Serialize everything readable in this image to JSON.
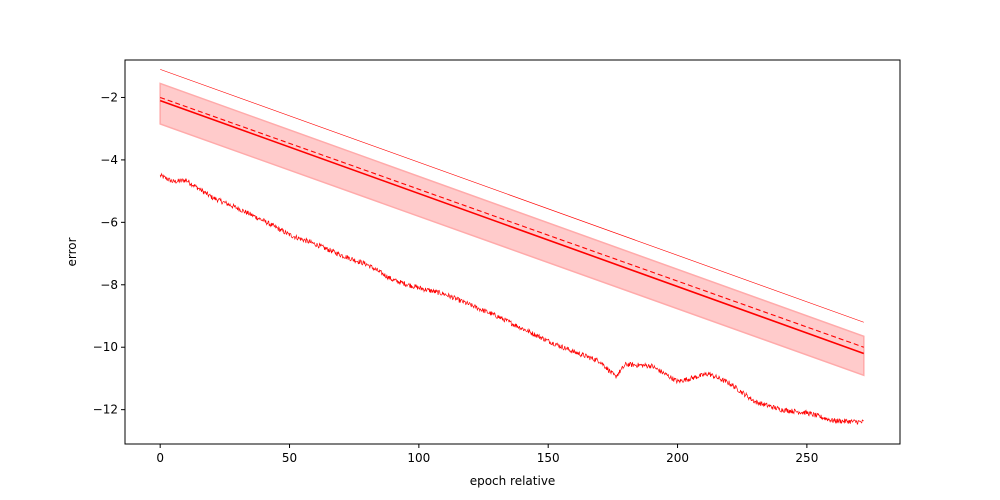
{
  "chart_data": {
    "type": "line",
    "title": "",
    "xlabel": "epoch relative",
    "ylabel": "error",
    "xlim": [
      -13.6,
      286
    ],
    "ylim": [
      -13.1,
      -0.8
    ],
    "xticks": [
      0,
      50,
      100,
      150,
      200,
      250
    ],
    "yticks": [
      -12,
      -10,
      -8,
      -6,
      -4,
      -2
    ],
    "grid": false,
    "legend": "none",
    "colors": {
      "line": "#ff0000",
      "band": "#ffc8c8",
      "band_edge": "#ffaaaa",
      "axes": "#000000",
      "background": "#ffffff"
    },
    "series": [
      {
        "style": "solid-thin",
        "description_free": true,
        "x": [
          0,
          272
        ],
        "y": [
          -1.1,
          -9.2
        ]
      },
      {
        "style": "dashed",
        "x": [
          0,
          272
        ],
        "y": [
          -2.0,
          -10.0
        ]
      },
      {
        "style": "solid-thick",
        "x": [
          0,
          272
        ],
        "y": [
          -2.1,
          -10.2
        ]
      },
      {
        "style": "band",
        "x": [
          0,
          272
        ],
        "upper": [
          -1.55,
          -9.65
        ],
        "lower": [
          -2.85,
          -10.9
        ]
      },
      {
        "style": "noisy",
        "x": [
          0,
          5,
          10,
          20,
          30,
          40,
          50,
          60,
          70,
          80,
          90,
          100,
          110,
          120,
          130,
          140,
          150,
          160,
          170,
          176,
          180,
          190,
          200,
          205,
          212,
          220,
          230,
          240,
          250,
          260,
          272
        ],
        "y": [
          -4.5,
          -4.7,
          -4.65,
          -5.2,
          -5.55,
          -5.95,
          -6.4,
          -6.7,
          -7.05,
          -7.35,
          -7.85,
          -8.1,
          -8.3,
          -8.65,
          -9.0,
          -9.4,
          -9.8,
          -10.15,
          -10.45,
          -10.95,
          -10.55,
          -10.6,
          -11.1,
          -11.0,
          -10.85,
          -11.15,
          -11.75,
          -12.0,
          -12.1,
          -12.35,
          -12.4
        ]
      }
    ]
  }
}
